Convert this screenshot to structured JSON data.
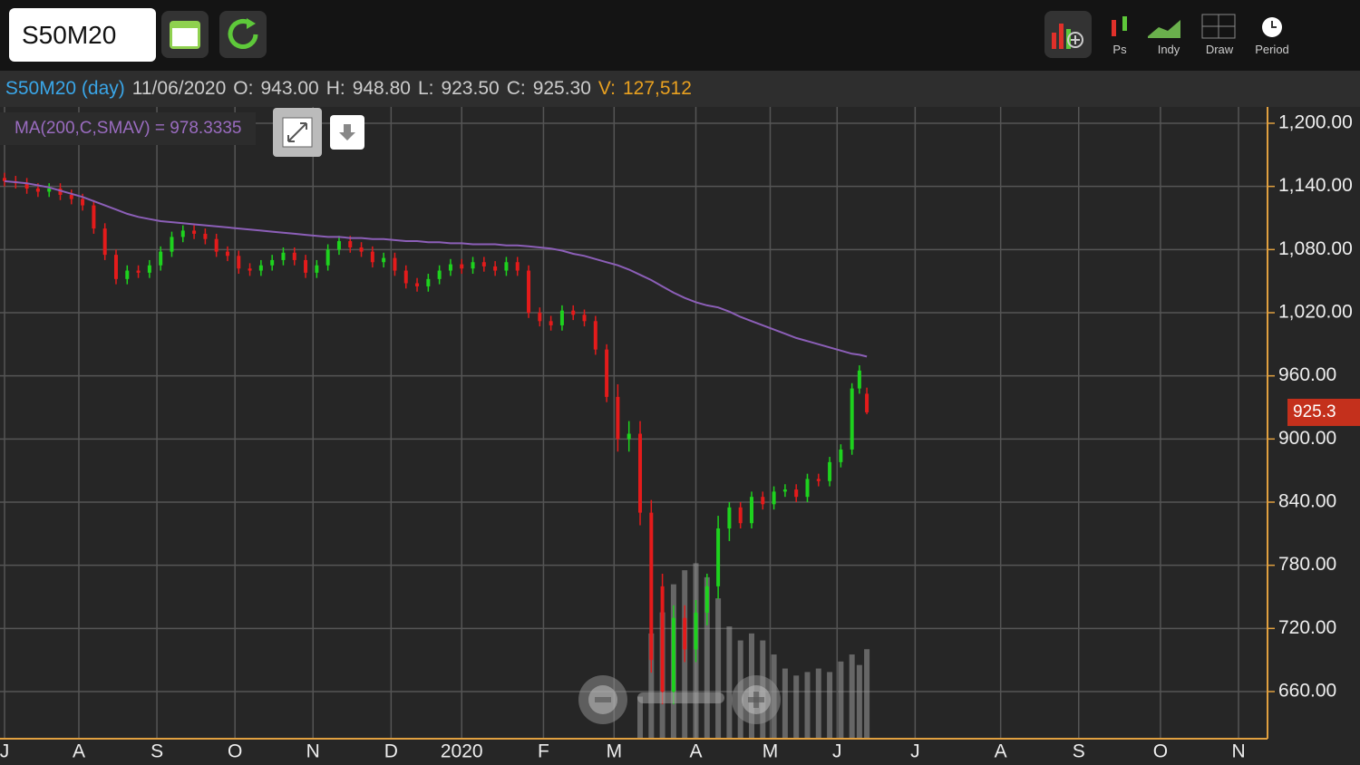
{
  "symbol": "S50M20",
  "toolbar": [
    "Ps",
    "Indy",
    "Draw",
    "Period"
  ],
  "header": {
    "symbol_period": "S50M20 (day)",
    "date": "11/06/2020",
    "o_label": "O:",
    "open": "943.00",
    "h_label": "H:",
    "high": "948.80",
    "l_label": "L:",
    "low": "923.50",
    "c_label": "C:",
    "close": "925.30",
    "v_label": "V:",
    "volume": "127,512"
  },
  "chart_data": {
    "type": "candlestick",
    "ma_label": "MA(200,C,SMAV) = 978.3335",
    "up_color": "#1ed21e",
    "down_color": "#e41b1b",
    "ma_color": "#8c5fb8",
    "volume_color": "#9a9a9a",
    "grid": true,
    "xlim": [
      -1.22,
      339.8
    ],
    "xticks": [
      {
        "value": 0,
        "label": "J"
      },
      {
        "value": 20,
        "label": "A"
      },
      {
        "value": 41,
        "label": "S"
      },
      {
        "value": 62,
        "label": "O"
      },
      {
        "value": 83,
        "label": "N"
      },
      {
        "value": 104,
        "label": "D"
      },
      {
        "value": 123,
        "label": "2020"
      },
      {
        "value": 145,
        "label": "F"
      },
      {
        "value": 164,
        "label": "M"
      },
      {
        "value": 186,
        "label": "A"
      },
      {
        "value": 206,
        "label": "M"
      },
      {
        "value": 224,
        "label": "J"
      },
      {
        "value": 245,
        "label": "J"
      },
      {
        "value": 268,
        "label": "A"
      },
      {
        "value": 289,
        "label": "S"
      },
      {
        "value": 311,
        "label": "O"
      },
      {
        "value": 332,
        "label": "N"
      }
    ],
    "ylim": [
      615.2,
      1215.5
    ],
    "yticks": [
      {
        "value": 660,
        "label": "660.00"
      },
      {
        "value": 720,
        "label": "720.00"
      },
      {
        "value": 780,
        "label": "780.00"
      },
      {
        "value": 840,
        "label": "840.00"
      },
      {
        "value": 900,
        "label": "900.00"
      },
      {
        "value": 960,
        "label": "960.00"
      },
      {
        "value": 1020,
        "label": "1,020.00"
      },
      {
        "value": 1080,
        "label": "1,080.00"
      },
      {
        "value": 1140,
        "label": "1,140.00"
      },
      {
        "value": 1200,
        "label": "1,200.00"
      }
    ],
    "last_price": 925.3,
    "volume_lim": [
      0,
      900000
    ],
    "x": [
      0,
      3,
      6,
      9,
      12,
      15,
      18,
      21,
      24,
      27,
      30,
      33,
      36,
      39,
      42,
      45,
      48,
      51,
      54,
      57,
      60,
      63,
      66,
      69,
      72,
      75,
      78,
      81,
      84,
      87,
      90,
      93,
      96,
      99,
      102,
      105,
      108,
      111,
      114,
      117,
      120,
      123,
      126,
      129,
      132,
      135,
      138,
      141,
      144,
      147,
      150,
      153,
      156,
      159,
      162,
      165,
      168,
      171,
      174,
      177,
      180,
      183,
      186,
      189,
      192,
      195,
      198,
      201,
      204,
      207,
      210,
      213,
      216,
      219,
      222,
      225,
      228,
      230,
      232
    ],
    "open": [
      1148,
      1145,
      1143,
      1138,
      1135,
      1138,
      1132,
      1128,
      1122,
      1100,
      1075,
      1052,
      1060,
      1058,
      1065,
      1078,
      1092,
      1098,
      1095,
      1090,
      1078,
      1074,
      1062,
      1060,
      1065,
      1070,
      1077,
      1070,
      1058,
      1065,
      1080,
      1088,
      1082,
      1078,
      1068,
      1072,
      1060,
      1048,
      1045,
      1052,
      1060,
      1066,
      1062,
      1068,
      1064,
      1060,
      1068,
      1060,
      1020,
      1012,
      1008,
      1022,
      1018,
      1012,
      985,
      940,
      900,
      905,
      830,
      760,
      660,
      730,
      700,
      735,
      760,
      815,
      835,
      820,
      845,
      838,
      850,
      852,
      845,
      862,
      860,
      878,
      890,
      948,
      943
    ],
    "high": [
      1153,
      1150,
      1148,
      1143,
      1143,
      1143,
      1137,
      1133,
      1127,
      1105,
      1080,
      1065,
      1065,
      1070,
      1083,
      1097,
      1103,
      1103,
      1100,
      1095,
      1083,
      1079,
      1067,
      1070,
      1075,
      1082,
      1082,
      1075,
      1070,
      1085,
      1093,
      1093,
      1087,
      1083,
      1077,
      1077,
      1065,
      1053,
      1057,
      1065,
      1071,
      1071,
      1073,
      1073,
      1069,
      1073,
      1073,
      1065,
      1025,
      1017,
      1027,
      1027,
      1023,
      1017,
      990,
      952,
      917,
      917,
      842,
      772,
      742,
      742,
      747,
      772,
      827,
      840,
      840,
      850,
      850,
      855,
      857,
      857,
      867,
      867,
      883,
      895,
      953,
      970,
      948.8
    ],
    "low": [
      1140,
      1138,
      1133,
      1130,
      1130,
      1127,
      1123,
      1117,
      1095,
      1070,
      1047,
      1047,
      1053,
      1053,
      1060,
      1073,
      1087,
      1090,
      1085,
      1073,
      1069,
      1057,
      1055,
      1055,
      1060,
      1065,
      1065,
      1053,
      1053,
      1060,
      1075,
      1077,
      1073,
      1063,
      1063,
      1055,
      1043,
      1040,
      1040,
      1047,
      1055,
      1057,
      1057,
      1059,
      1055,
      1055,
      1055,
      1015,
      1007,
      1003,
      1003,
      1013,
      1007,
      980,
      935,
      888,
      888,
      818,
      678,
      648,
      648,
      688,
      688,
      723,
      748,
      803,
      815,
      815,
      833,
      833,
      845,
      840,
      840,
      855,
      855,
      873,
      885,
      943,
      923.5
    ],
    "close": [
      1145,
      1143,
      1138,
      1135,
      1138,
      1132,
      1128,
      1122,
      1100,
      1075,
      1052,
      1060,
      1058,
      1065,
      1078,
      1092,
      1098,
      1095,
      1090,
      1078,
      1074,
      1062,
      1060,
      1065,
      1070,
      1077,
      1070,
      1058,
      1065,
      1080,
      1088,
      1082,
      1078,
      1068,
      1072,
      1060,
      1048,
      1045,
      1052,
      1060,
      1066,
      1062,
      1068,
      1064,
      1060,
      1068,
      1060,
      1020,
      1012,
      1008,
      1022,
      1018,
      1012,
      985,
      940,
      900,
      905,
      830,
      690,
      660,
      730,
      700,
      735,
      760,
      815,
      835,
      820,
      845,
      838,
      850,
      852,
      845,
      862,
      860,
      878,
      890,
      948,
      965,
      925.3
    ],
    "ma": [
      1145,
      1144,
      1143,
      1141,
      1139,
      1136,
      1133,
      1130,
      1126,
      1122,
      1118,
      1114,
      1111,
      1109,
      1107,
      1106,
      1105,
      1104,
      1103,
      1102,
      1101,
      1100,
      1099,
      1098,
      1097,
      1096,
      1095,
      1094,
      1093,
      1092,
      1092,
      1091,
      1091,
      1090,
      1090,
      1089,
      1088,
      1088,
      1087,
      1087,
      1086,
      1086,
      1085,
      1085,
      1085,
      1084,
      1084,
      1083,
      1082,
      1081,
      1079,
      1076,
      1074,
      1071,
      1068,
      1065,
      1061,
      1056,
      1051,
      1045,
      1039,
      1034,
      1030,
      1027,
      1025,
      1021,
      1016,
      1012,
      1008,
      1004,
      1000,
      996,
      993,
      990,
      987,
      984,
      981,
      980,
      978.3335
    ],
    "volume": [
      null,
      null,
      null,
      null,
      null,
      null,
      null,
      null,
      null,
      null,
      null,
      null,
      null,
      null,
      null,
      null,
      null,
      null,
      null,
      null,
      null,
      null,
      null,
      null,
      null,
      null,
      null,
      null,
      null,
      null,
      null,
      null,
      null,
      null,
      null,
      null,
      null,
      null,
      null,
      null,
      null,
      null,
      null,
      null,
      null,
      null,
      null,
      null,
      null,
      null,
      null,
      null,
      null,
      null,
      null,
      null,
      null,
      60000,
      150000,
      180000,
      220000,
      240000,
      250000,
      230000,
      200000,
      160000,
      140000,
      150000,
      140000,
      120000,
      100000,
      90000,
      95000,
      100000,
      95000,
      110000,
      120000,
      105000,
      127512
    ]
  }
}
